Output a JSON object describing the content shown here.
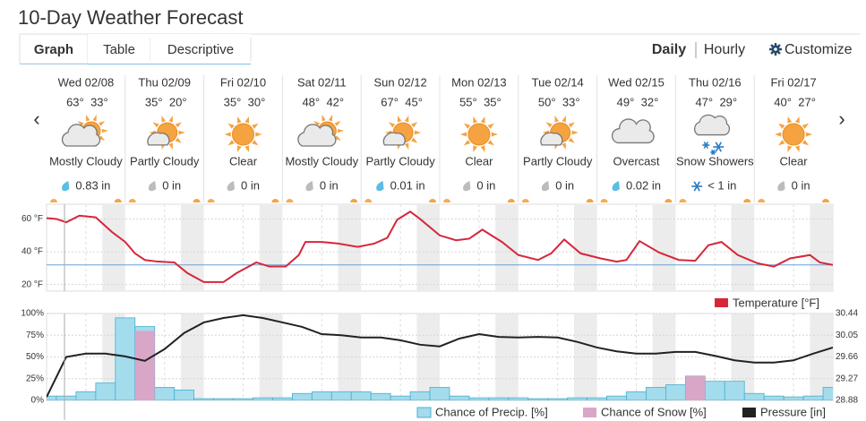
{
  "header": {
    "title": "10-Day Weather Forecast"
  },
  "tabs": [
    "Graph",
    "Table",
    "Descriptive"
  ],
  "active_tab": 0,
  "view_options": [
    "Daily",
    "Hourly"
  ],
  "active_view": 0,
  "customize": "Customize",
  "days": [
    {
      "date": "Wed 02/08",
      "high": "63°",
      "low": "33°",
      "condition": "Mostly Cloudy",
      "precip": "0.83 in",
      "icon": "mostly-cloudy",
      "precip_icon": "rain"
    },
    {
      "date": "Thu 02/09",
      "high": "35°",
      "low": "20°",
      "condition": "Partly Cloudy",
      "precip": "0 in",
      "icon": "partly-cloudy",
      "precip_icon": "none"
    },
    {
      "date": "Fri 02/10",
      "high": "35°",
      "low": "30°",
      "condition": "Clear",
      "precip": "0 in",
      "icon": "clear",
      "precip_icon": "none"
    },
    {
      "date": "Sat 02/11",
      "high": "48°",
      "low": "42°",
      "condition": "Mostly Cloudy",
      "precip": "0 in",
      "icon": "mostly-cloudy",
      "precip_icon": "none"
    },
    {
      "date": "Sun 02/12",
      "high": "67°",
      "low": "45°",
      "condition": "Partly Cloudy",
      "precip": "0.01 in",
      "icon": "partly-cloudy",
      "precip_icon": "rain"
    },
    {
      "date": "Mon 02/13",
      "high": "55°",
      "low": "35°",
      "condition": "Clear",
      "precip": "0 in",
      "icon": "clear",
      "precip_icon": "none"
    },
    {
      "date": "Tue 02/14",
      "high": "50°",
      "low": "33°",
      "condition": "Partly Cloudy",
      "precip": "0 in",
      "icon": "partly-cloudy",
      "precip_icon": "none"
    },
    {
      "date": "Wed 02/15",
      "high": "49°",
      "low": "32°",
      "condition": "Overcast",
      "precip": "0.02 in",
      "icon": "overcast",
      "precip_icon": "rain"
    },
    {
      "date": "Thu 02/16",
      "high": "47°",
      "low": "29°",
      "condition": "Snow Showers",
      "precip": "< 1 in",
      "icon": "snow-showers",
      "precip_icon": "snow"
    },
    {
      "date": "Fri 02/17",
      "high": "40°",
      "low": "27°",
      "condition": "Clear",
      "precip": "0 in",
      "icon": "clear",
      "precip_icon": "none"
    }
  ],
  "chart_data": [
    {
      "type": "line",
      "x": [
        0,
        3,
        6,
        10,
        15,
        20,
        24,
        27,
        30,
        34,
        39,
        43,
        48,
        54,
        58,
        64,
        68,
        73,
        77,
        79,
        84,
        89,
        95,
        100,
        104,
        107,
        111,
        114,
        120,
        125,
        129,
        133,
        139,
        144,
        150,
        154,
        158,
        163,
        169,
        174,
        177,
        181,
        187,
        193,
        198,
        202,
        206,
        211,
        217,
        222,
        227,
        233,
        236,
        240
      ],
      "series": [
        {
          "name": "Temperature [°F]",
          "color": "#d7263a",
          "values": [
            60.5,
            60,
            58,
            62,
            61,
            52,
            46,
            39,
            35,
            34,
            33.5,
            27,
            21.5,
            21.5,
            27,
            33.5,
            31,
            31,
            38,
            46,
            46,
            45,
            43,
            45,
            48.5,
            59.5,
            64.5,
            60,
            50,
            47,
            48,
            53.5,
            46,
            38,
            35,
            39,
            47.5,
            39,
            36,
            34,
            35,
            46.5,
            39.5,
            35,
            34.5,
            44,
            46,
            38,
            33,
            31,
            36,
            38,
            33.5,
            32
          ]
        }
      ],
      "xlim": [
        0,
        240
      ],
      "ylim": [
        16,
        69
      ],
      "yticks": [
        {
          "value": 60,
          "label": "60 °F"
        },
        {
          "value": 40,
          "label": "40 °F"
        },
        {
          "value": 20,
          "label": "20 °F"
        }
      ],
      "reference_line": 32,
      "reference_color": "#6a9fd4",
      "grid": true
    },
    {
      "type": "combo",
      "x": [
        0,
        6,
        12,
        18,
        24,
        30,
        36,
        42,
        48,
        54,
        60,
        66,
        72,
        78,
        84,
        90,
        96,
        102,
        108,
        114,
        120,
        126,
        132,
        138,
        144,
        150,
        156,
        162,
        168,
        174,
        180,
        186,
        192,
        198,
        204,
        210,
        216,
        222,
        228,
        234,
        240
      ],
      "series": [
        {
          "name": "Chance of Precip. [%]",
          "type": "bar",
          "color": "#a3dcec",
          "values": [
            5,
            5,
            10,
            20,
            95,
            85,
            15,
            12,
            2,
            2,
            2,
            3,
            3,
            8,
            10,
            10,
            10,
            8,
            5,
            10,
            15,
            5,
            3,
            3,
            3,
            2,
            2,
            3,
            3,
            5,
            10,
            15,
            18,
            28,
            22,
            22,
            8,
            5,
            4,
            5,
            15
          ]
        },
        {
          "name": "Chance of Snow [%]",
          "type": "bar",
          "color": "#d9a6c8",
          "values": [
            0,
            0,
            0,
            0,
            0,
            80,
            0,
            0,
            0,
            0,
            0,
            0,
            0,
            0,
            0,
            0,
            0,
            0,
            0,
            0,
            0,
            0,
            0,
            0,
            0,
            0,
            0,
            0,
            0,
            0,
            0,
            0,
            0,
            28,
            0,
            0,
            0,
            0,
            0,
            0,
            0
          ]
        },
        {
          "name": "Pressure [in]",
          "type": "line",
          "axis": "y2",
          "color": "#222222",
          "values": [
            28.94,
            29.66,
            29.72,
            29.72,
            29.67,
            29.59,
            29.8,
            30.09,
            30.28,
            30.36,
            30.41,
            30.36,
            30.28,
            30.2,
            30.07,
            30.05,
            30.01,
            30.01,
            29.96,
            29.88,
            29.85,
            29.99,
            30.07,
            30.02,
            30.01,
            30.02,
            30.01,
            29.93,
            29.83,
            29.76,
            29.72,
            29.72,
            29.75,
            29.75,
            29.68,
            29.6,
            29.56,
            29.56,
            29.6,
            29.72,
            29.83
          ]
        }
      ],
      "xlim": [
        0,
        240
      ],
      "ylim": [
        0,
        100
      ],
      "yticks": [
        {
          "value": 100,
          "label": "100%"
        },
        {
          "value": 75,
          "label": "75%"
        },
        {
          "value": 50,
          "label": "50%"
        },
        {
          "value": 25,
          "label": "25%"
        },
        {
          "value": 0,
          "label": "0%"
        }
      ],
      "y2lim": [
        28.88,
        30.44
      ],
      "y2ticks": [
        30.44,
        30.05,
        29.66,
        29.27,
        28.88
      ],
      "grid": true
    }
  ]
}
